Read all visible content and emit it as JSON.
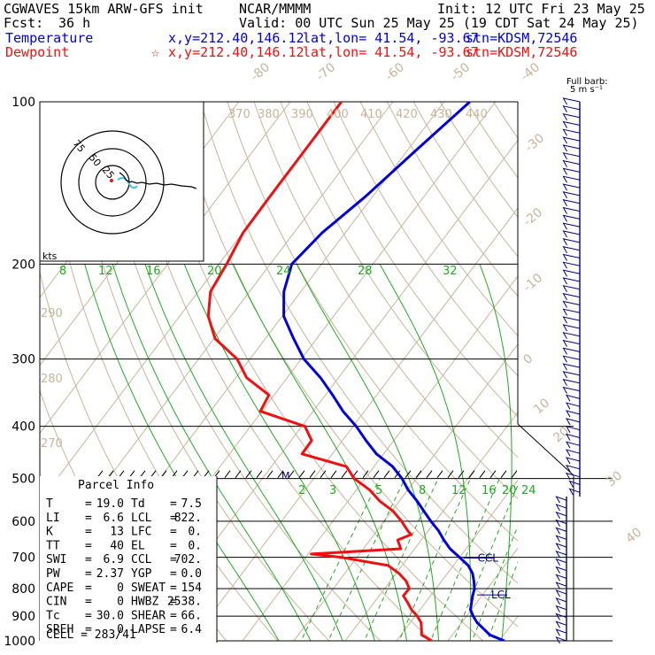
{
  "header": {
    "model": "CGWAVES 15km ARW-GFS init",
    "org": "NCAR/MMMM",
    "init": "Init: 12 UTC Fri 23 May 25",
    "fcst_label": "Fcst:",
    "fcst_value": "36 h",
    "valid": "Valid: 00 UTC Sun 25 May 25 (19 CDT Sat 24 May 25)",
    "temperature": {
      "label": "Temperature",
      "xy": "x,y=212.40,146.12",
      "latlon": "lat,lon= 41.54, -93.67",
      "stn": "stn=KDSM,72546"
    },
    "dewpoint": {
      "label": "Dewpoint",
      "marker": "☆",
      "xy": "x,y=212.40,146.12",
      "latlon": "lat,lon= 41.54, -93.67",
      "stn": "stn=KDSM,72546"
    }
  },
  "colors": {
    "temperature": "#0000dd",
    "dewpoint": "#ee1111",
    "isotherm": "#c8b49a",
    "dry_adiabat": "#c8b49a",
    "moist_adiabat": "#22aa22",
    "mixing_ratio": "#22aa22",
    "wind": "#000080",
    "isobar": "#000000"
  },
  "chart_data": {
    "type": "line",
    "subtype": "skew-T log-P sounding",
    "pressure_levels": [
      100,
      200,
      300,
      400,
      500,
      600,
      700,
      800,
      900,
      1000
    ],
    "pressure_labels": [
      "100",
      "200",
      "300",
      "400",
      "500",
      "600",
      "700",
      "800",
      "900",
      "1000"
    ],
    "isotherm_labels": [
      "-80",
      "-70",
      "-60",
      "-50",
      "-40",
      "-30",
      "-20",
      "-10",
      "0",
      "10",
      "20",
      "30",
      "40"
    ],
    "theta_labels": [
      "370",
      "380",
      "390",
      "400",
      "410",
      "420",
      "430",
      "440",
      "290",
      "280",
      "270"
    ],
    "theta_e_labels": [
      "8",
      "12",
      "16",
      "20",
      "24",
      "28",
      "32"
    ],
    "mixing_ratio_labels": [
      "2",
      "3",
      "5",
      "8",
      "12",
      "16",
      "20",
      "24"
    ],
    "series": [
      {
        "name": "Temperature",
        "p": [
          1000,
          975,
          950,
          925,
          900,
          875,
          850,
          825,
          800,
          775,
          750,
          725,
          700,
          675,
          650,
          625,
          600,
          575,
          550,
          525,
          500,
          475,
          450,
          425,
          400,
          375,
          350,
          325,
          300,
          275,
          250,
          225,
          200,
          175,
          150,
          125,
          100
        ],
        "t": [
          31.0,
          27.3,
          25.2,
          23.0,
          21.3,
          19.8,
          19.0,
          18.2,
          17.5,
          16.3,
          14.9,
          12.9,
          10.0,
          6.9,
          4.4,
          2.0,
          -0.9,
          -3.7,
          -6.6,
          -9.9,
          -12.8,
          -16.4,
          -21.4,
          -25.4,
          -29.4,
          -34.2,
          -38.6,
          -43.5,
          -49.5,
          -54.5,
          -59.7,
          -63.3,
          -65.8,
          -64.5,
          -61.4,
          -58.6,
          -55.0
        ]
      },
      {
        "name": "Dewpoint",
        "p": [
          1000,
          975,
          950,
          925,
          900,
          875,
          850,
          825,
          800,
          775,
          750,
          725,
          700,
          690,
          675,
          650,
          635,
          625,
          600,
          575,
          550,
          525,
          500,
          475,
          450,
          425,
          400,
          375,
          350,
          325,
          300,
          275,
          250,
          225,
          200,
          175,
          150,
          125,
          100
        ],
        "t": [
          16.9,
          14.0,
          13.1,
          12.1,
          10.4,
          8.3,
          6.6,
          4.7,
          4.8,
          3.1,
          0.6,
          -2.7,
          -13.0,
          -19.4,
          -2.7,
          -4.6,
          -2.8,
          -4.0,
          -6.6,
          -9.7,
          -13.9,
          -17.4,
          -22.1,
          -25.4,
          -35.9,
          -36.0,
          -39.4,
          -50.3,
          -51.0,
          -57.9,
          -62.5,
          -69.8,
          -74.4,
          -77.6,
          -78.5,
          -79.9,
          -80.0,
          -80.0,
          -80.0
        ]
      }
    ],
    "lcl": {
      "label": "LCL",
      "pressure": 822
    },
    "ccl": {
      "label": "CCL",
      "pressure": 702
    },
    "wind_barbs": {
      "units_label": "Full barb:",
      "units_value": "5 m s⁻¹",
      "levels": [
        {
          "p": 100,
          "dir": 265,
          "spd": 25
        },
        {
          "p": 125,
          "dir": 262,
          "spd": 28
        },
        {
          "p": 150,
          "dir": 260,
          "spd": 30
        },
        {
          "p": 175,
          "dir": 258,
          "spd": 32
        },
        {
          "p": 200,
          "dir": 255,
          "spd": 35
        },
        {
          "p": 250,
          "dir": 250,
          "spd": 30
        },
        {
          "p": 300,
          "dir": 250,
          "spd": 28
        },
        {
          "p": 350,
          "dir": 250,
          "spd": 25
        },
        {
          "p": 400,
          "dir": 245,
          "spd": 22
        },
        {
          "p": 450,
          "dir": 240,
          "spd": 18
        },
        {
          "p": 500,
          "dir": 240,
          "spd": 15
        },
        {
          "p": 550,
          "dir": 230,
          "spd": 12
        },
        {
          "p": 600,
          "dir": 220,
          "spd": 8
        },
        {
          "p": 650,
          "dir": 200,
          "spd": 6
        },
        {
          "p": 700,
          "dir": 190,
          "spd": 5
        },
        {
          "p": 750,
          "dir": 180,
          "spd": 6
        },
        {
          "p": 800,
          "dir": 175,
          "spd": 8
        },
        {
          "p": 850,
          "dir": 170,
          "spd": 10
        },
        {
          "p": 900,
          "dir": 165,
          "spd": 12
        },
        {
          "p": 950,
          "dir": 160,
          "spd": 10
        },
        {
          "p": 1000,
          "dir": 160,
          "spd": 8
        }
      ]
    },
    "hodograph": {
      "units_label": "kts",
      "ring_labels": [
        "25",
        "50",
        "75"
      ],
      "trace_u": [
        0,
        2,
        4,
        5,
        8,
        10,
        14,
        18,
        24,
        30,
        36,
        42,
        50,
        58,
        62
      ],
      "trace_v": [
        8,
        6,
        3,
        0,
        -3,
        -2,
        -4,
        -3,
        -5,
        -4,
        -6,
        -5,
        -7,
        -8,
        -10
      ]
    }
  },
  "parcel_info": {
    "title": "Parcel Info",
    "rows": [
      [
        {
          "label": "T",
          "value": "19.0"
        },
        {
          "label": "Td",
          "value": "7.5"
        }
      ],
      [
        {
          "label": "LI",
          "value": "6.6"
        },
        {
          "label": "LCL",
          "value": "822."
        }
      ],
      [
        {
          "label": "K",
          "value": "13"
        },
        {
          "label": "LFC",
          "value": "0."
        }
      ],
      [
        {
          "label": "TT",
          "value": "40"
        },
        {
          "label": "EL",
          "value": "0."
        }
      ],
      [
        {
          "label": "SWI",
          "value": "6.9"
        },
        {
          "label": "CCL",
          "value": "702."
        }
      ],
      [
        {
          "label": "PW",
          "value": "2.37"
        },
        {
          "label": "YGP",
          "value": "0.0"
        }
      ],
      [
        {
          "label": "CAPE",
          "value": "0"
        },
        {
          "label": "SWEAT",
          "value": "154"
        }
      ],
      [
        {
          "label": "CIN",
          "value": "0"
        },
        {
          "label": "HWBZ",
          "value": "2538."
        }
      ],
      [
        {
          "label": "Tc",
          "value": "30.0"
        },
        {
          "label": "SHEAR",
          "value": "66."
        }
      ],
      [
        {
          "label": "SREH",
          "value": "0"
        },
        {
          "label": "LAPSE",
          "value": "6.4"
        }
      ]
    ],
    "cell": "CELL = 283/41",
    "m_marker": "M"
  }
}
